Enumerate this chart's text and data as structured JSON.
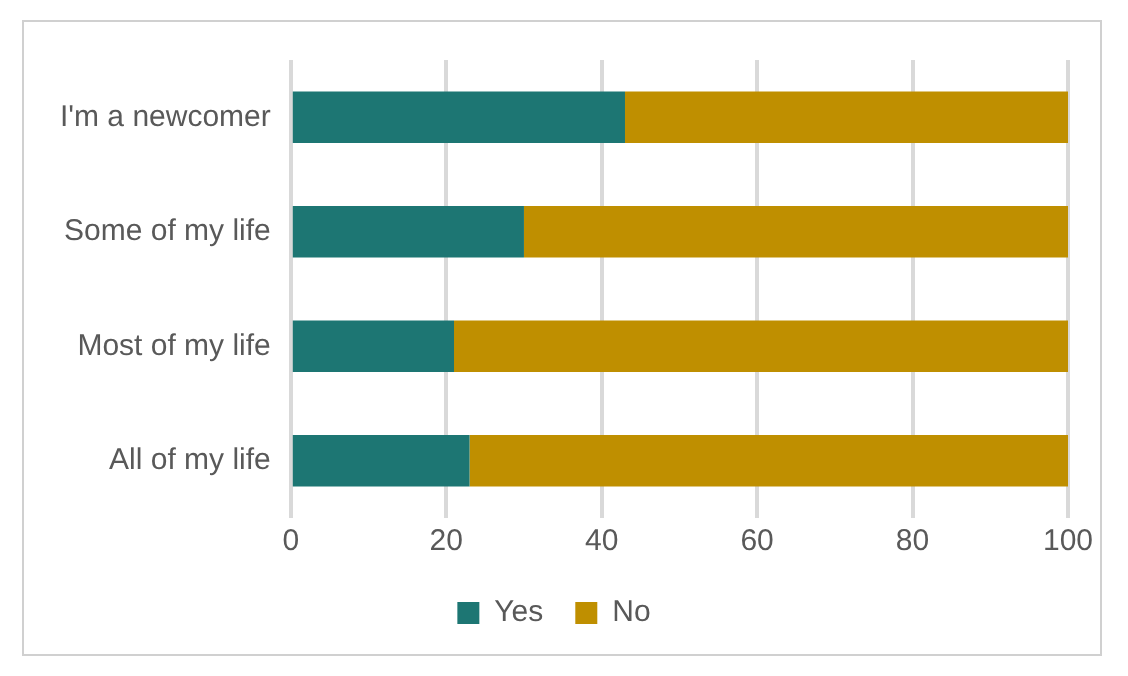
{
  "chart_data": {
    "type": "bar",
    "orientation": "horizontal",
    "stacked": true,
    "categories": [
      "I'm a newcomer",
      "Some of my life",
      "Most of my life",
      "All of my life"
    ],
    "series": [
      {
        "name": "Yes",
        "color": "#1d7673",
        "values": [
          43,
          30,
          21,
          23
        ]
      },
      {
        "name": "No",
        "color": "#bf8f00",
        "values": [
          57,
          70,
          79,
          77
        ]
      }
    ],
    "xlim": [
      0,
      100
    ],
    "xticks": [
      0,
      20,
      40,
      60,
      80,
      100
    ],
    "grid": "x",
    "legend": "bottom"
  }
}
